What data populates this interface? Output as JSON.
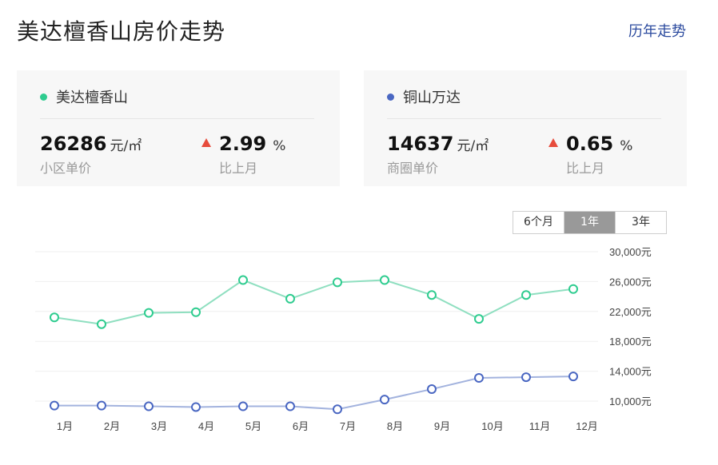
{
  "header": {
    "title": "美达檀香山房价走势",
    "history_link": "历年走势"
  },
  "cards": [
    {
      "name": "美达檀香山",
      "dot_color": "#2ecc8f",
      "price": "26286",
      "unit": "元/㎡",
      "price_label": "小区单价",
      "change": "2.99",
      "change_unit": "%",
      "change_label": "比上月",
      "trend": "up"
    },
    {
      "name": "铜山万达",
      "dot_color": "#4a67c2",
      "price": "14637",
      "unit": "元/㎡",
      "price_label": "商圈单价",
      "change": "0.65",
      "change_unit": "%",
      "change_label": "比上月",
      "trend": "up"
    }
  ],
  "range_tabs": {
    "options": [
      "6个月",
      "1年",
      "3年"
    ],
    "selected": "1年"
  },
  "chart_data": {
    "type": "line",
    "categories": [
      "1月",
      "2月",
      "3月",
      "4月",
      "5月",
      "6月",
      "7月",
      "8月",
      "9月",
      "10月",
      "11月",
      "12月"
    ],
    "series": [
      {
        "name": "美达檀香山",
        "color": "#2ecc8f",
        "line_color": "#8fdfc0",
        "values": [
          21200,
          20300,
          21800,
          21900,
          26200,
          23700,
          25900,
          26200,
          24200,
          21000,
          24200,
          25000
        ]
      },
      {
        "name": "铜山万达",
        "color": "#4a67c2",
        "line_color": "#a3b3de",
        "values": [
          9400,
          9400,
          9300,
          9200,
          9300,
          9300,
          8900,
          10200,
          11600,
          13100,
          13200,
          13300
        ]
      }
    ],
    "y_ticks": [
      "10,000元",
      "14,000元",
      "18,000元",
      "22,000元",
      "26,000元",
      "30,000元"
    ],
    "ylim": [
      10000,
      30000
    ],
    "y_axis_position": "right",
    "grid": true
  }
}
